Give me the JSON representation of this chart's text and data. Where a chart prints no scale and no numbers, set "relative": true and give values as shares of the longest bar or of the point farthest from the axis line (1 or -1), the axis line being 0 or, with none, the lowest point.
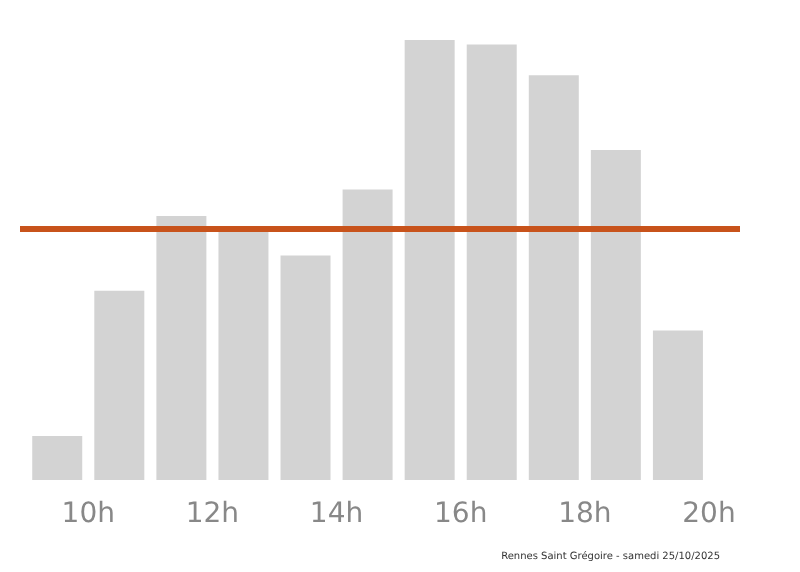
{
  "chart_data": {
    "type": "bar",
    "relative": true,
    "x": [
      9.5,
      10.5,
      11.5,
      12.5,
      13.5,
      14.5,
      15.5,
      16.5,
      17.5,
      18.5,
      19.5
    ],
    "values": [
      0.1,
      0.43,
      0.6,
      0.57,
      0.51,
      0.66,
      1,
      0.99,
      0.92,
      0.75,
      0.34
    ],
    "color": "#d3d3d3",
    "xlim": [
      8.9,
      20.5
    ],
    "xticks": [
      {
        "value": 10,
        "label": "10h"
      },
      {
        "value": 12,
        "label": "12h"
      },
      {
        "value": 14,
        "label": "14h"
      },
      {
        "value": 16,
        "label": "16h"
      },
      {
        "value": 18,
        "label": "18h"
      },
      {
        "value": 20,
        "label": "20h"
      }
    ],
    "ref_lines": [
      {
        "axis": "y",
        "value": 0.57,
        "color": "#c8531b"
      }
    ],
    "annotations": [
      "Rennes Saint Grégoire - samedi 25/10/2025"
    ],
    "grid": false
  }
}
